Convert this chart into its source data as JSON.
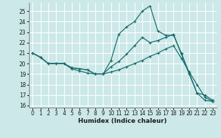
{
  "xlabel": "Humidex (Indice chaleur)",
  "xlim": [
    -0.5,
    23.5
  ],
  "ylim": [
    15.8,
    25.8
  ],
  "yticks": [
    16,
    17,
    18,
    19,
    20,
    21,
    22,
    23,
    24,
    25
  ],
  "xticks": [
    0,
    1,
    2,
    3,
    4,
    5,
    6,
    7,
    8,
    9,
    10,
    11,
    12,
    13,
    14,
    15,
    16,
    17,
    18,
    19,
    20,
    21,
    22,
    23
  ],
  "background_color": "#cce8e8",
  "grid_color": "#ffffff",
  "line_color": "#1a6b6b",
  "line1_x": [
    0,
    1,
    2,
    3,
    4,
    5,
    6,
    7,
    8,
    9,
    10,
    11,
    12,
    13,
    14,
    15,
    16,
    17,
    18,
    19,
    20,
    21,
    22,
    23
  ],
  "line1_y": [
    21,
    20.6,
    20.0,
    20.0,
    20.0,
    19.6,
    19.5,
    19.4,
    19.0,
    19.0,
    20.3,
    22.8,
    23.5,
    24.0,
    25.0,
    25.5,
    23.1,
    22.7,
    22.7,
    21.0,
    19.1,
    17.2,
    17.0,
    16.5
  ],
  "line2_x": [
    0,
    1,
    2,
    3,
    4,
    5,
    6,
    7,
    8,
    9,
    10,
    11,
    12,
    13,
    14,
    15,
    16,
    17,
    18,
    19,
    20,
    21,
    22,
    23
  ],
  "line2_y": [
    21,
    20.6,
    20.0,
    20.0,
    20.0,
    19.6,
    19.5,
    19.4,
    19.0,
    19.0,
    19.7,
    20.2,
    20.9,
    21.7,
    22.5,
    22.0,
    22.2,
    22.5,
    22.8,
    20.9,
    19.0,
    17.2,
    16.5,
    16.4
  ],
  "line3_x": [
    0,
    1,
    2,
    3,
    4,
    5,
    6,
    7,
    8,
    9,
    10,
    11,
    12,
    13,
    14,
    15,
    16,
    17,
    18,
    19,
    20,
    21,
    22,
    23
  ],
  "line3_y": [
    21,
    20.6,
    20.0,
    20.0,
    20.0,
    19.5,
    19.3,
    19.1,
    19.0,
    19.0,
    19.2,
    19.4,
    19.7,
    20.0,
    20.3,
    20.7,
    21.0,
    21.4,
    21.7,
    20.5,
    19.2,
    18.0,
    16.8,
    16.4
  ]
}
